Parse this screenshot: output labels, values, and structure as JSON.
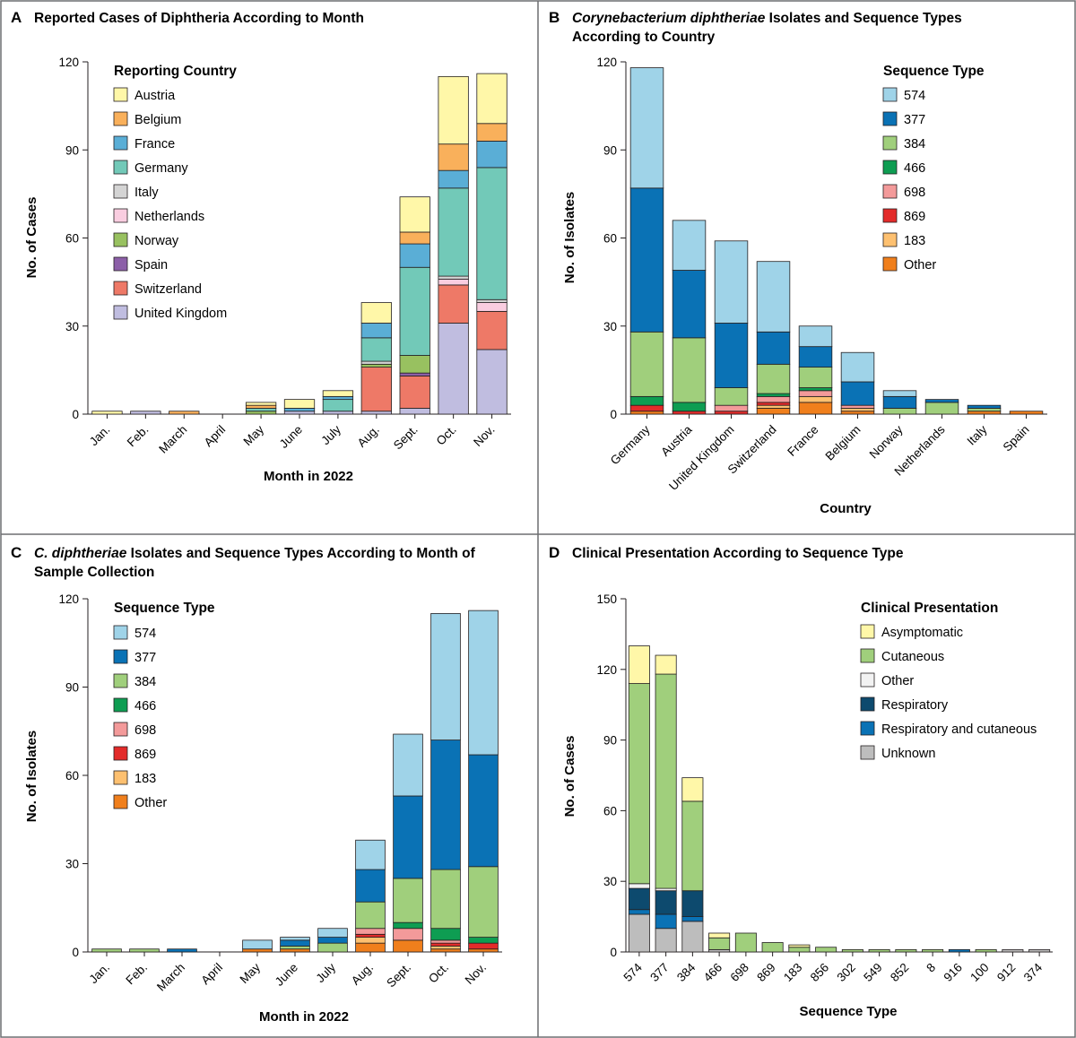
{
  "colors": {
    "Austria": "#fff7a8",
    "Belgium": "#f9b05b",
    "France": "#5aaed6",
    "Germany": "#72c9b8",
    "Italy": "#d4d4d4",
    "Netherlands": "#f9cde0",
    "Norway": "#98c160",
    "Spain": "#8c5fa8",
    "Switzerland": "#ee7967",
    "United Kingdom": "#c0bde0",
    "574": "#9fd3e8",
    "377": "#0a72b5",
    "384": "#a0cf7c",
    "466": "#0e9d52",
    "698": "#f39a9a",
    "869": "#e32b2a",
    "183": "#fdc070",
    "Other": "#f07f1c",
    "Asymptomatic": "#fff7a8",
    "Cutaneous": "#a0cf7c",
    "Other_clin": "#f2f2f2",
    "Respiratory": "#0d4a6e",
    "Respiratory and cutaneous": "#0a72b5",
    "Unknown": "#bdbdbd"
  },
  "chart_data": [
    {
      "panel": "A",
      "title": "Reported Cases of Diphtheria According to Month",
      "type": "bar",
      "stacked": true,
      "xlabel": "Month in 2022",
      "ylabel": "No. of Cases",
      "ylim": [
        0,
        120
      ],
      "yticks": [
        0,
        30,
        60,
        90,
        120
      ],
      "legend_title": "Reporting Country",
      "legend": [
        "Austria",
        "Belgium",
        "France",
        "Germany",
        "Italy",
        "Netherlands",
        "Norway",
        "Spain",
        "Switzerland",
        "United Kingdom"
      ],
      "categories": [
        "Jan.",
        "Feb.",
        "March",
        "April",
        "May",
        "June",
        "July",
        "Aug.",
        "Sept.",
        "Oct.",
        "Nov."
      ],
      "series": [
        {
          "name": "United Kingdom",
          "values": [
            0,
            1,
            0,
            0,
            0,
            1,
            1,
            1,
            2,
            31,
            22
          ]
        },
        {
          "name": "Switzerland",
          "values": [
            0,
            0,
            0,
            0,
            0,
            0,
            0,
            15,
            11,
            13,
            13
          ]
        },
        {
          "name": "Spain",
          "values": [
            0,
            0,
            0,
            0,
            0,
            0,
            0,
            0,
            1,
            0,
            0
          ]
        },
        {
          "name": "Norway",
          "values": [
            0,
            0,
            0,
            0,
            1,
            0,
            0,
            1,
            6,
            0,
            0
          ]
        },
        {
          "name": "Netherlands",
          "values": [
            0,
            0,
            0,
            0,
            0,
            0,
            0,
            0,
            0,
            2,
            3
          ]
        },
        {
          "name": "Italy",
          "values": [
            0,
            0,
            0,
            0,
            0,
            0,
            0,
            1,
            0,
            1,
            1
          ]
        },
        {
          "name": "Germany",
          "values": [
            0,
            0,
            0,
            0,
            1,
            0,
            4,
            8,
            30,
            30,
            45
          ]
        },
        {
          "name": "France",
          "values": [
            0,
            0,
            0,
            0,
            0,
            1,
            1,
            5,
            8,
            6,
            9
          ]
        },
        {
          "name": "Belgium",
          "values": [
            0,
            0,
            1,
            0,
            1,
            0,
            0,
            0,
            4,
            9,
            6
          ]
        },
        {
          "name": "Austria",
          "values": [
            1,
            0,
            0,
            0,
            1,
            3,
            2,
            7,
            12,
            23,
            17
          ]
        }
      ]
    },
    {
      "panel": "B",
      "title_italic": "Corynebacterium diphtheriae",
      "title": " Isolates and Sequence Types According to Country",
      "type": "bar",
      "stacked": true,
      "xlabel": "Country",
      "ylabel": "No. of Isolates",
      "ylim": [
        0,
        120
      ],
      "yticks": [
        0,
        30,
        60,
        90,
        120
      ],
      "legend_title": "Sequence Type",
      "legend": [
        "574",
        "377",
        "384",
        "466",
        "698",
        "869",
        "183",
        "Other"
      ],
      "categories": [
        "Germany",
        "Austria",
        "United Kingdom",
        "Switzerland",
        "France",
        "Belgium",
        "Norway",
        "Netherlands",
        "Italy",
        "Spain"
      ],
      "series": [
        {
          "name": "Other",
          "values": [
            1,
            0,
            0,
            2,
            4,
            1,
            0,
            0,
            1,
            1
          ]
        },
        {
          "name": "183",
          "values": [
            0,
            0,
            0,
            1,
            2,
            1,
            0,
            0,
            0,
            0
          ]
        },
        {
          "name": "869",
          "values": [
            2,
            1,
            1,
            1,
            0,
            0,
            0,
            0,
            0,
            0
          ]
        },
        {
          "name": "698",
          "values": [
            0,
            0,
            2,
            2,
            2,
            1,
            0,
            0,
            0,
            0
          ]
        },
        {
          "name": "466",
          "values": [
            3,
            3,
            0,
            1,
            1,
            0,
            0,
            0,
            0,
            0
          ]
        },
        {
          "name": "384",
          "values": [
            22,
            22,
            6,
            10,
            7,
            0,
            2,
            4,
            1,
            0
          ]
        },
        {
          "name": "377",
          "values": [
            49,
            23,
            22,
            11,
            7,
            8,
            4,
            1,
            1,
            0
          ]
        },
        {
          "name": "574",
          "values": [
            41,
            17,
            28,
            24,
            7,
            10,
            2,
            0,
            0,
            0
          ]
        }
      ]
    },
    {
      "panel": "C",
      "title_italic": "C. diphtheriae",
      "title": " Isolates and Sequence Types According to Month of Sample Collection",
      "type": "bar",
      "stacked": true,
      "xlabel": "Month in 2022",
      "ylabel": "No. of Isolates",
      "ylim": [
        0,
        120
      ],
      "yticks": [
        0,
        30,
        60,
        90,
        120
      ],
      "legend_title": "Sequence Type",
      "legend": [
        "574",
        "377",
        "384",
        "466",
        "698",
        "869",
        "183",
        "Other"
      ],
      "categories": [
        "Jan.",
        "Feb.",
        "March",
        "April",
        "May",
        "June",
        "July",
        "Aug.",
        "Sept.",
        "Oct.",
        "Nov."
      ],
      "series": [
        {
          "name": "Other",
          "values": [
            0,
            0,
            0,
            0,
            1,
            1,
            0,
            3,
            4,
            1,
            1
          ]
        },
        {
          "name": "183",
          "values": [
            0,
            0,
            0,
            0,
            0,
            0,
            0,
            2,
            0,
            1,
            0
          ]
        },
        {
          "name": "869",
          "values": [
            0,
            0,
            0,
            0,
            0,
            0,
            0,
            1,
            0,
            1,
            2
          ]
        },
        {
          "name": "698",
          "values": [
            0,
            0,
            0,
            0,
            0,
            0,
            0,
            2,
            4,
            1,
            0
          ]
        },
        {
          "name": "466",
          "values": [
            0,
            0,
            0,
            0,
            0,
            0,
            0,
            0,
            2,
            4,
            2
          ]
        },
        {
          "name": "384",
          "values": [
            1,
            1,
            0,
            0,
            0,
            1,
            3,
            9,
            15,
            20,
            24
          ]
        },
        {
          "name": "377",
          "values": [
            0,
            0,
            1,
            0,
            0,
            2,
            2,
            11,
            28,
            44,
            38
          ]
        },
        {
          "name": "574",
          "values": [
            0,
            0,
            0,
            0,
            3,
            1,
            3,
            10,
            21,
            43,
            49
          ]
        }
      ]
    },
    {
      "panel": "D",
      "title": "Clinical Presentation According to Sequence Type",
      "type": "bar",
      "stacked": true,
      "xlabel": "Sequence Type",
      "ylabel": "No. of Cases",
      "ylim": [
        0,
        150
      ],
      "yticks": [
        0,
        30,
        60,
        90,
        120,
        150
      ],
      "legend_title": "Clinical Presentation",
      "legend": [
        "Asymptomatic",
        "Cutaneous",
        "Other",
        "Respiratory",
        "Respiratory and cutaneous",
        "Unknown"
      ],
      "categories": [
        "574",
        "377",
        "384",
        "466",
        "698",
        "869",
        "183",
        "856",
        "302",
        "549",
        "852",
        "8",
        "916",
        "100",
        "912",
        "374"
      ],
      "series": [
        {
          "name": "Unknown",
          "values": [
            16,
            10,
            13,
            1,
            0,
            0,
            0,
            0,
            0,
            0,
            0,
            0,
            0,
            0,
            1,
            1
          ]
        },
        {
          "name": "Respiratory and cutaneous",
          "values": [
            2,
            6,
            2,
            0,
            0,
            0,
            0,
            0,
            0,
            0,
            0,
            0,
            1,
            0,
            0,
            0
          ]
        },
        {
          "name": "Respiratory",
          "values": [
            9,
            10,
            11,
            0,
            0,
            0,
            0,
            0,
            0,
            0,
            0,
            0,
            0,
            0,
            0,
            0
          ]
        },
        {
          "name": "Other",
          "values": [
            2,
            1,
            0,
            0,
            0,
            0,
            0,
            0,
            0,
            0,
            0,
            0,
            0,
            0,
            0,
            0
          ]
        },
        {
          "name": "Cutaneous",
          "values": [
            85,
            91,
            38,
            5,
            8,
            4,
            2,
            2,
            1,
            1,
            1,
            1,
            0,
            1,
            0,
            0
          ]
        },
        {
          "name": "Asymptomatic",
          "values": [
            16,
            8,
            10,
            2,
            0,
            0,
            1,
            0,
            0,
            0,
            0,
            0,
            0,
            0,
            0,
            0
          ]
        }
      ]
    }
  ]
}
